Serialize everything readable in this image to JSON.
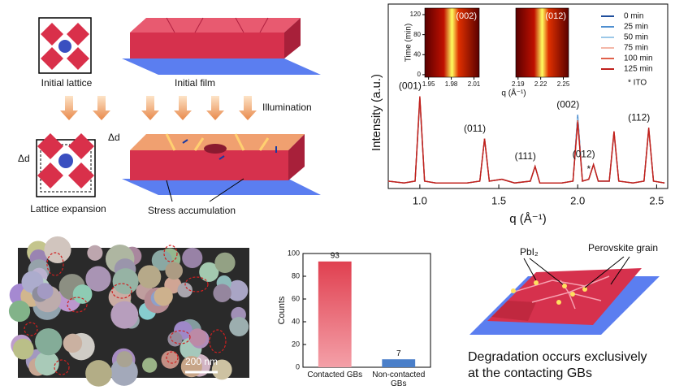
{
  "diagram": {
    "top_left": {
      "initial_lattice": "Initial lattice",
      "initial_film": "Initial film",
      "illumination": "Illumination",
      "delta_d_top": "Δd",
      "delta_d_left": "Δd",
      "lattice_expansion": "Lattice expansion",
      "stress_accumulation": "Stress accumulation"
    },
    "sem": {
      "scale_bar": "200 nm"
    },
    "degradation": {
      "pbi2": "PbI₂",
      "grain": "Perovskite grain",
      "caption": "Degradation occurs exclusively at the contacting GBs"
    }
  },
  "chart_data": [
    {
      "type": "line",
      "ylabel": "Intensity (a.u.)",
      "xlabel": "q (Å⁻¹)",
      "x": [
        0.8,
        0.9,
        0.97,
        1.0,
        1.03,
        1.1,
        1.3,
        1.38,
        1.41,
        1.44,
        1.52,
        1.6,
        1.7,
        1.73,
        1.76,
        1.9,
        1.97,
        2.0,
        2.03,
        2.07,
        2.1,
        2.13,
        2.2,
        2.23,
        2.26,
        2.35,
        2.42,
        2.45,
        2.48,
        2.55
      ],
      "xlim": [
        0.8,
        2.57
      ],
      "ylim": [
        0,
        100
      ],
      "xticks": [
        {
          "value": 1,
          "label": "1.0"
        },
        1.5,
        {
          "value": 2,
          "label": "2.0"
        },
        2.5
      ],
      "series": [
        {
          "name": "0 min",
          "color": "#1f4e9c",
          "values": [
            4,
            3,
            4,
            48,
            4,
            3,
            3,
            4,
            27,
            4,
            5,
            3,
            4,
            12,
            3,
            3,
            4,
            39,
            4,
            5,
            13,
            4,
            4,
            30,
            4,
            3,
            4,
            32,
            4,
            3
          ]
        },
        {
          "name": "25 min",
          "color": "#4f8fd0",
          "values": [
            4,
            3,
            4,
            48,
            4,
            3,
            3,
            4,
            27,
            4,
            5,
            3,
            4,
            12,
            3,
            3,
            4,
            40,
            4,
            5,
            13,
            4,
            4,
            30,
            4,
            3,
            4,
            32,
            4,
            3
          ]
        },
        {
          "name": "50 min",
          "color": "#9cc8e8",
          "values": [
            4,
            3,
            4,
            49,
            4,
            3,
            3,
            4,
            27,
            4,
            5,
            3,
            4,
            12,
            3,
            3,
            4,
            38,
            4,
            5,
            13,
            4,
            4,
            30,
            4,
            3,
            4,
            32,
            4,
            3
          ]
        },
        {
          "name": "75 min",
          "color": "#f4b7a8",
          "values": [
            4,
            3,
            4,
            49,
            4,
            3,
            3,
            4,
            27,
            4,
            5,
            3,
            4,
            12,
            3,
            3,
            4,
            37,
            4,
            5,
            13,
            4,
            4,
            30,
            4,
            3,
            4,
            32,
            4,
            3
          ]
        },
        {
          "name": "100 min",
          "color": "#e0604a",
          "values": [
            4,
            3,
            4,
            49,
            4,
            3,
            3,
            4,
            27,
            4,
            5,
            3,
            4,
            12,
            3,
            3,
            4,
            37,
            4,
            5,
            13,
            4,
            4,
            31,
            4,
            3,
            4,
            32,
            4,
            3
          ]
        },
        {
          "name": "125 min",
          "color": "#c0201c",
          "values": [
            4,
            3,
            4,
            50,
            4,
            3,
            3,
            4,
            27,
            4,
            5,
            3,
            4,
            12,
            3,
            3,
            4,
            36,
            4,
            5,
            13,
            4,
            4,
            31,
            4,
            3,
            4,
            33,
            4,
            3
          ]
        }
      ],
      "annotations": [
        {
          "text": "(001)",
          "x": 1.0
        },
        {
          "text": "(011)",
          "x": 1.41
        },
        {
          "text": "(111)",
          "x": 1.73
        },
        {
          "text": "(002)",
          "x": 2.0
        },
        {
          "text": "*",
          "x": 2.07
        },
        {
          "text": "(012)",
          "x": 2.1
        },
        {
          "text": "(112)",
          "x": 2.45
        }
      ],
      "legend_note": "* ITO",
      "inset": {
        "ylabel": "Time (min)",
        "xlabel": "q (Å⁻¹)",
        "ylim": [
          -5,
          133
        ],
        "yticks": [
          0,
          40,
          80,
          120
        ],
        "panels": [
          {
            "label": "(002)",
            "xlim": [
              1.945,
              2.017
            ],
            "xticks": [
              1.95,
              1.98,
              2.01
            ]
          },
          {
            "label": "(012)",
            "xlim": [
              2.187,
              2.257
            ],
            "xticks": [
              2.19,
              2.22,
              2.25
            ]
          }
        ]
      }
    },
    {
      "type": "bar",
      "ylabel": "Counts",
      "categories": [
        "Contacted GBs",
        "Non-contacted GBs"
      ],
      "values": [
        93,
        7
      ],
      "colors": [
        "#e8606e",
        "#4a7fc9"
      ],
      "ylim": [
        0,
        100
      ],
      "yticks": [
        0,
        20,
        40,
        60,
        80,
        100
      ]
    }
  ]
}
